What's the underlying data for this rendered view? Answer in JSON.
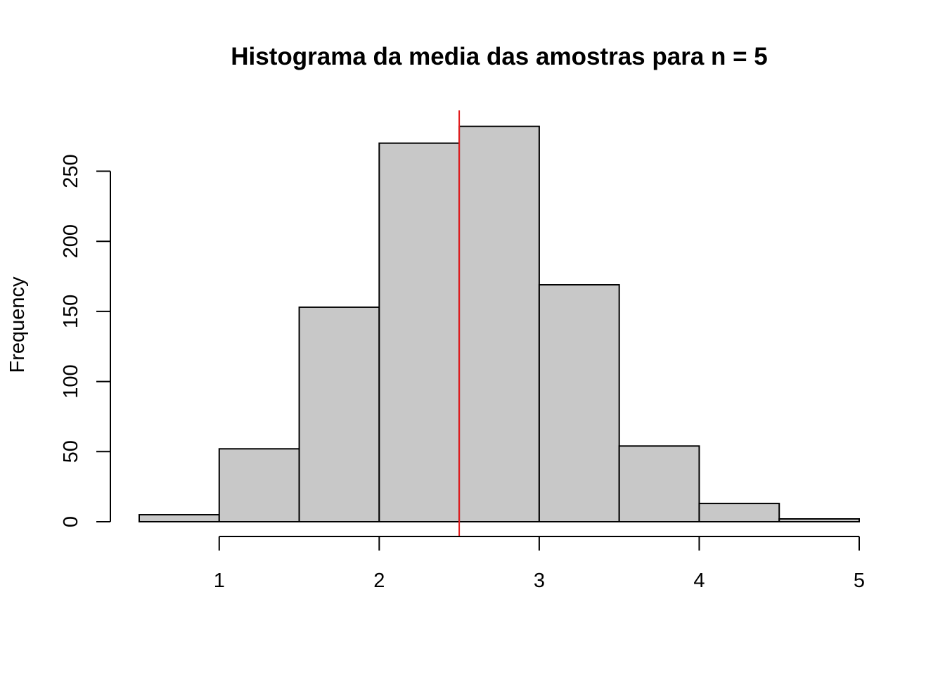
{
  "chart_data": {
    "type": "bar",
    "title": "Histograma da media das amostras para n = 5",
    "xlabel": "",
    "ylabel": "Frequency",
    "bin_edges": [
      0.5,
      1.0,
      1.5,
      2.0,
      2.5,
      3.0,
      3.5,
      4.0,
      4.5,
      5.0
    ],
    "values": [
      5,
      52,
      153,
      270,
      282,
      169,
      54,
      13,
      2
    ],
    "x_ticks": [
      1,
      2,
      3,
      4,
      5
    ],
    "y_ticks": [
      0,
      50,
      100,
      150,
      200,
      250
    ],
    "xlim": [
      0.5,
      5.0
    ],
    "ylim": [
      0,
      300
    ],
    "grid": false,
    "reference_line": {
      "x": 2.5,
      "color": "#e31a1c"
    },
    "colors": {
      "bar_fill": "#c8c8c8",
      "bar_stroke": "#000000"
    }
  }
}
